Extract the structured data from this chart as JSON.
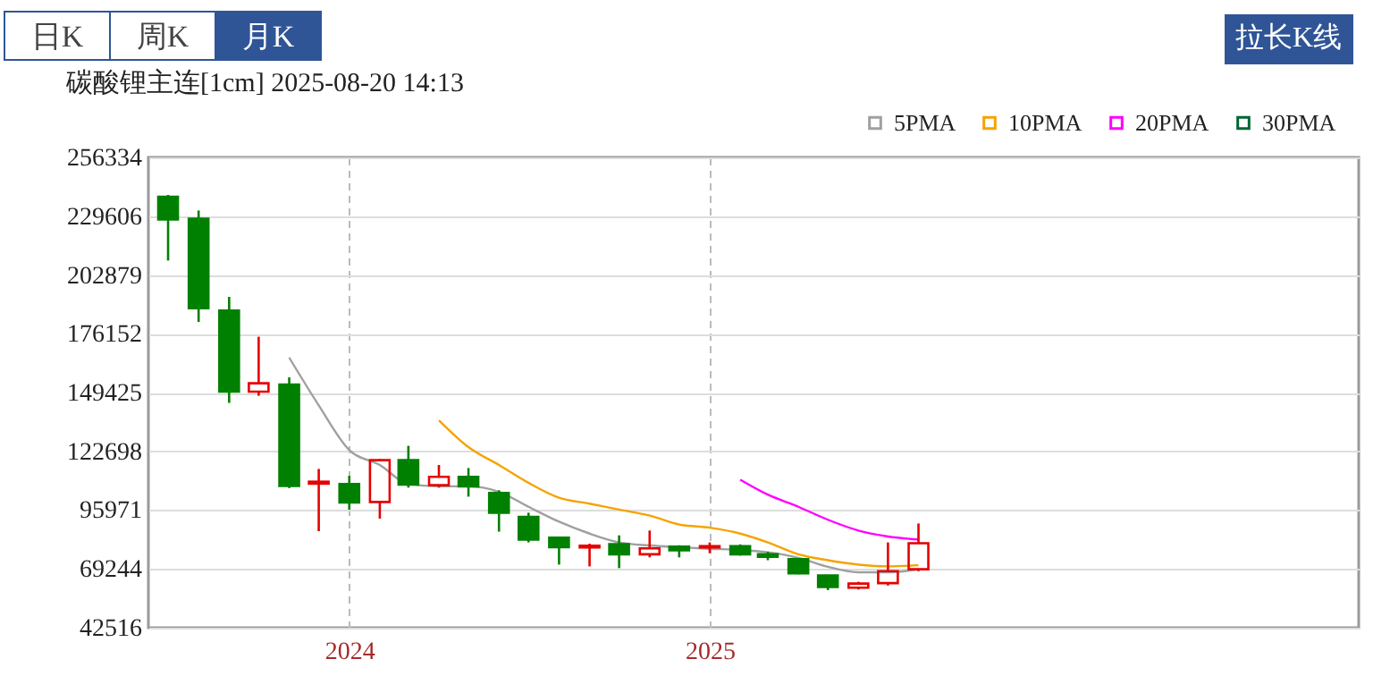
{
  "chart_data": {
    "type": "candlestick",
    "title": "碳酸锂主连[1cm] 2025-08-20 14:13",
    "annotations": [
      "日K",
      "周K",
      "月K",
      "拉长K线"
    ],
    "x": [
      "2023-07",
      "2023-08",
      "2023-09",
      "2023-10",
      "2023-11",
      "2023-12",
      "2024-01",
      "2024-02",
      "2024-03",
      "2024-04",
      "2024-05",
      "2024-06",
      "2024-07",
      "2024-08",
      "2024-09",
      "2024-10",
      "2024-11",
      "2024-12",
      "2025-01",
      "2025-02",
      "2025-03",
      "2025-04",
      "2025-05",
      "2025-06",
      "2025-07",
      "2025-08"
    ],
    "ohlc": [
      [
        238448,
        239261,
        209424,
        228123
      ],
      [
        228448,
        232188,
        181538,
        187798
      ],
      [
        186660,
        192920,
        144709,
        149831
      ],
      [
        149831,
        174790,
        147956,
        153652
      ],
      [
        153083,
        156335,
        106000,
        106989
      ],
      [
        108000,
        114700,
        86400,
        108900
      ],
      [
        107800,
        111600,
        96170,
        99460
      ],
      [
        99700,
        119200,
        92100,
        118700
      ],
      [
        118700,
        125200,
        106200,
        107550
      ],
      [
        107300,
        116500,
        106200,
        111100
      ],
      [
        111100,
        115100,
        102100,
        106750
      ],
      [
        103740,
        105000,
        86170,
        94800
      ],
      [
        92920,
        94800,
        81300,
        82600
      ],
      [
        83400,
        84000,
        71200,
        79100
      ],
      [
        79000,
        80700,
        70400,
        79800
      ],
      [
        80500,
        84500,
        69600,
        75900
      ],
      [
        75900,
        86700,
        74500,
        78600
      ],
      [
        79350,
        80000,
        74500,
        77700
      ],
      [
        79000,
        81300,
        76400,
        79600
      ],
      [
        79600,
        80400,
        75300,
        75900
      ],
      [
        75900,
        77000,
        73200,
        74800
      ],
      [
        73700,
        74000,
        66800,
        67200
      ],
      [
        66300,
        66500,
        59600,
        61000
      ],
      [
        60700,
        63400,
        59900,
        62600
      ],
      [
        62800,
        81300,
        61700,
        68200
      ],
      [
        69100,
        89900,
        68200,
        80900
      ]
    ],
    "colors": [
      "#008000",
      "#008000",
      "#008000",
      "#e60000",
      "#008000",
      "#e60000",
      "#008000",
      "#e60000",
      "#008000",
      "#e60000",
      "#008000",
      "#008000",
      "#008000",
      "#008000",
      "#e60000",
      "#008000",
      "#e60000",
      "#008000",
      "#e60000",
      "#008000",
      "#008000",
      "#008000",
      "#008000",
      "#e60000",
      "#e60000",
      "#e60000"
    ],
    "series": [
      {
        "name": "5PMA",
        "type": "line",
        "color": "#a0a0a0",
        "values": [
          null,
          null,
          null,
          null,
          165300,
          143600,
          123300,
          116500,
          107800,
          106800,
          106800,
          104300,
          97500,
          90700,
          85300,
          81300,
          79900,
          79100,
          78400,
          77900,
          76800,
          74300,
          70200,
          67700,
          67700,
          69100
        ]
      },
      {
        "name": "10PMA",
        "type": "line",
        "color": "#f5a300",
        "values": [
          null,
          null,
          null,
          null,
          null,
          null,
          null,
          null,
          null,
          136800,
          124600,
          116500,
          108400,
          101600,
          98900,
          96200,
          93500,
          89400,
          88000,
          85300,
          81300,
          75900,
          73200,
          71200,
          70400,
          70900
        ]
      },
      {
        "name": "20PMA",
        "type": "line",
        "color": "#ff00ff",
        "values": [
          null,
          null,
          null,
          null,
          null,
          null,
          null,
          null,
          null,
          null,
          null,
          null,
          null,
          null,
          null,
          null,
          null,
          null,
          null,
          109800,
          103000,
          97500,
          91600,
          86700,
          84000,
          82600
        ]
      },
      {
        "name": "30PMA",
        "type": "line",
        "color": "#006633",
        "values": [
          null,
          null,
          null,
          null,
          null,
          null,
          null,
          null,
          null,
          null,
          null,
          null,
          null,
          null,
          null,
          null,
          null,
          null,
          null,
          null,
          null,
          null,
          null,
          null,
          null,
          null
        ]
      }
    ],
    "xlim": [
      "2023-06-11",
      "2026-10-22"
    ],
    "xticks": [
      {
        "value": "2024-01",
        "label": "2024"
      },
      {
        "value": "2025-01",
        "label": "2025"
      }
    ],
    "ylim": [
      42516,
      256334
    ],
    "yticks": [
      42516,
      69244,
      95971,
      122698,
      149425,
      176152,
      202879,
      229606,
      256334
    ],
    "grid": true,
    "legend": "top right"
  }
}
